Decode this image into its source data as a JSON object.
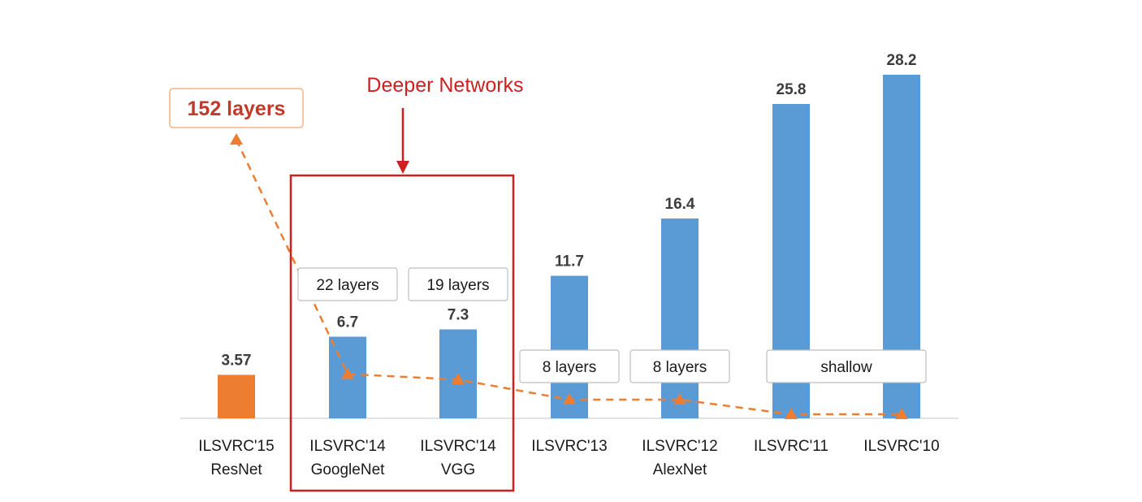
{
  "chart_data": {
    "type": "bar",
    "categories": [
      [
        "ILSVRC'15",
        "ResNet"
      ],
      [
        "ILSVRC'14",
        "GoogleNet"
      ],
      [
        "ILSVRC'14",
        "VGG"
      ],
      [
        "ILSVRC'13"
      ],
      [
        "ILSVRC'12",
        "AlexNet"
      ],
      [
        "ILSVRC'11"
      ],
      [
        "ILSVRC'10"
      ]
    ],
    "values": [
      3.57,
      6.7,
      7.3,
      11.7,
      16.4,
      25.8,
      28.2
    ],
    "value_labels": [
      "3.57",
      "6.7",
      "7.3",
      "11.7",
      "16.4",
      "25.8",
      "28.2"
    ],
    "bar_colors": [
      "#ed7d31",
      "#5b9bd5",
      "#5b9bd5",
      "#5b9bd5",
      "#5b9bd5",
      "#5b9bd5",
      "#5b9bd5"
    ],
    "ylim": [
      0,
      30
    ],
    "layers_line": {
      "color": "#ed7d31",
      "style": "dashed",
      "marker": "triangle",
      "values": [
        152,
        22,
        19,
        8,
        8,
        0,
        0
      ]
    },
    "layer_labels": [
      "152 layers",
      "22 layers",
      "19 layers",
      "8 layers",
      "8 layers",
      "shallow",
      ""
    ],
    "annotation": {
      "text": "Deeper Networks",
      "highlight_color": "#d01f1f",
      "highlighted_categories": [
        1,
        2
      ]
    }
  }
}
